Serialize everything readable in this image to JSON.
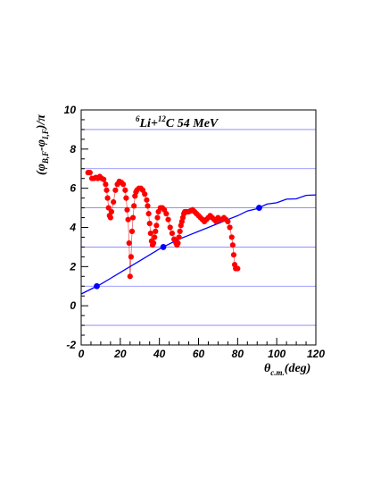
{
  "chart_data": {
    "type": "scatter",
    "title": "⁶Li+¹²C 54 MeV",
    "title_parts": {
      "mass1": "6",
      "el1": "Li+",
      "mass2": "12",
      "el2": "C 54 MeV"
    },
    "xlabel": {
      "main": "θ",
      "sub": "c.m.",
      "tail": "(deg)"
    },
    "ylabel": {
      "open": "(φ",
      "sub1": "B,F",
      "mid": "-φ",
      "sub2": "I,F",
      "close": ")/π"
    },
    "xlim": [
      0,
      120
    ],
    "ylim": [
      -2,
      10
    ],
    "x_ticks": [
      0,
      20,
      40,
      60,
      80,
      100,
      120
    ],
    "y_ticks": [
      -2,
      0,
      2,
      4,
      6,
      8,
      10
    ],
    "h_reference_lines": [
      -1,
      1,
      3,
      5,
      7,
      9
    ],
    "colors": {
      "data": "#ff0000",
      "curve": "#0000ff",
      "ref": "#8080ff",
      "connector": "#e05050"
    },
    "series": [
      {
        "marker": "red-dot",
        "x": [
          3.5,
          4.5,
          5.5,
          6.5,
          7.5,
          8.5,
          9.5,
          10.5,
          11.5,
          12.5,
          13,
          13.5,
          14,
          14.5,
          15,
          15.5,
          16.5,
          17.5,
          18.5,
          19.5,
          20.5,
          21.5,
          22.5,
          23,
          23.5,
          24,
          24.5,
          25,
          25.5,
          26,
          26.5,
          27,
          27.5,
          28,
          28.5,
          29.5,
          30.5,
          31.5,
          32.5,
          33.5,
          34,
          34.5,
          35,
          35.5,
          36,
          36.5,
          37,
          37.5,
          38,
          38.5,
          39,
          39.5,
          40.5,
          41.5,
          42.5,
          43.5,
          44.5,
          45.5,
          46.5,
          47.5,
          48.5,
          49,
          49.5,
          50,
          50.5,
          51,
          51.5,
          52,
          52.5,
          53,
          53.5,
          54,
          55,
          56,
          57,
          58,
          59,
          60,
          61,
          62,
          63,
          64,
          65,
          66,
          67,
          68,
          69,
          70,
          71,
          72,
          73,
          74,
          75,
          76,
          77,
          77.5,
          78,
          78.5,
          79,
          79.5,
          80
        ],
        "y": [
          6.8,
          6.8,
          6.5,
          6.5,
          6.55,
          6.5,
          6.6,
          6.5,
          6.45,
          6.2,
          5.9,
          5.5,
          5.0,
          4.6,
          4.5,
          4.8,
          5.3,
          5.9,
          6.2,
          6.35,
          6.3,
          6.2,
          5.9,
          5.5,
          4.9,
          4.4,
          3.2,
          1.5,
          2.5,
          3.8,
          4.5,
          5.1,
          5.6,
          5.8,
          5.9,
          6.0,
          6.0,
          5.9,
          5.7,
          5.4,
          5.1,
          4.7,
          4.2,
          3.7,
          3.3,
          3.1,
          3.2,
          3.5,
          3.8,
          4.1,
          4.5,
          4.8,
          5.0,
          5.0,
          4.9,
          4.7,
          4.4,
          4.0,
          3.7,
          3.4,
          3.2,
          3.1,
          3.2,
          3.5,
          3.8,
          4.1,
          4.3,
          4.5,
          4.7,
          4.8,
          4.8,
          4.8,
          4.8,
          4.85,
          4.9,
          4.8,
          4.7,
          4.6,
          4.5,
          4.4,
          4.3,
          4.4,
          4.5,
          4.6,
          4.5,
          4.4,
          4.3,
          4.5,
          4.4,
          4.4,
          4.5,
          4.4,
          4.3,
          4.0,
          3.5,
          3.1,
          2.6,
          2.1,
          1.9,
          1.9,
          1.9
        ]
      },
      {
        "marker": "blue-line",
        "x": [
          0,
          5,
          10,
          15,
          20,
          25,
          30,
          35,
          40,
          45,
          50,
          55,
          60,
          65,
          70,
          75,
          80,
          85,
          90,
          95,
          100,
          105,
          110,
          115,
          120
        ],
        "y": [
          0.6,
          0.85,
          1.1,
          1.4,
          1.7,
          2.0,
          2.3,
          2.6,
          2.9,
          3.15,
          3.4,
          3.6,
          3.8,
          4.0,
          4.2,
          4.4,
          4.6,
          4.8,
          5.0,
          5.15,
          5.3,
          5.4,
          5.5,
          5.6,
          5.7
        ]
      },
      {
        "marker": "blue-dot",
        "x": [
          8,
          42,
          91
        ],
        "y": [
          1.0,
          3.0,
          5.0
        ]
      }
    ]
  }
}
